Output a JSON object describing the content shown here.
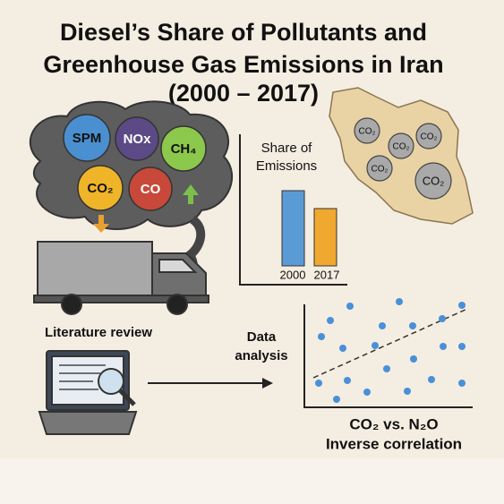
{
  "title": [
    "Diesel’s Share of Pollutants and",
    "Greenhouse Gas Emissions in Iran",
    "(2000 – 2017)"
  ],
  "pollutants": [
    "SPM",
    "NOx",
    "CH₄",
    "CO₂",
    "CO"
  ],
  "map_labels": [
    "CO₂",
    "CO₂",
    "CO₂",
    "CO₂",
    "CO₂"
  ],
  "bar_chart": {
    "title": [
      "Share of",
      "Emissions"
    ],
    "categories": [
      "2000",
      "2017"
    ]
  },
  "literature": "Literature review",
  "analysis": [
    "Data",
    "analysis"
  ],
  "scatter_caption": [
    "CO₂ vs. N₂O",
    "Inverse correlation"
  ]
}
